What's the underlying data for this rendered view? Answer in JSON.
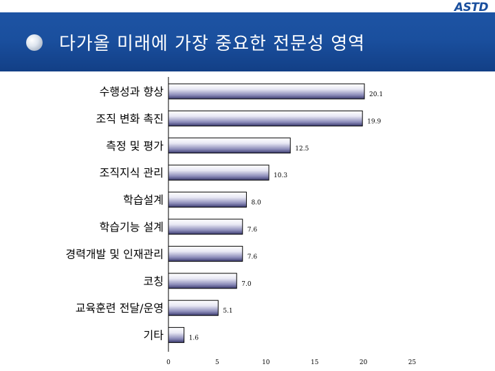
{
  "logo": "ASTD",
  "title": "다가올 미래에 가장 중요한 전문성 영역",
  "colors": {
    "header": "#1a4f9e",
    "bar_light": "#ffffff",
    "bar_dark": "#3a3a6e"
  },
  "chart_data": {
    "type": "bar",
    "orientation": "horizontal",
    "title": "",
    "xlabel": "",
    "ylabel": "",
    "categories": [
      "수행성과 향상",
      "조직 변화 촉진",
      "측정 및 평가",
      "조직지식 관리",
      "학습설계",
      "학습기능 설계",
      "경력개발 및 인재관리",
      "코칭",
      "교육훈련 전달/운영",
      "기타"
    ],
    "values": [
      20.1,
      19.9,
      12.5,
      10.3,
      8.0,
      7.6,
      7.6,
      7.0,
      5.1,
      1.6
    ],
    "value_labels": [
      "20.1",
      "19.9",
      "12.5",
      "10.3",
      "8.0",
      "7.6",
      "7.6",
      "7.0",
      "5.1",
      "1.6"
    ],
    "xlim": [
      0,
      25
    ],
    "xticks": [
      "0",
      "5",
      "10",
      "15",
      "20",
      "25"
    ],
    "grid": false,
    "legend": "none"
  }
}
